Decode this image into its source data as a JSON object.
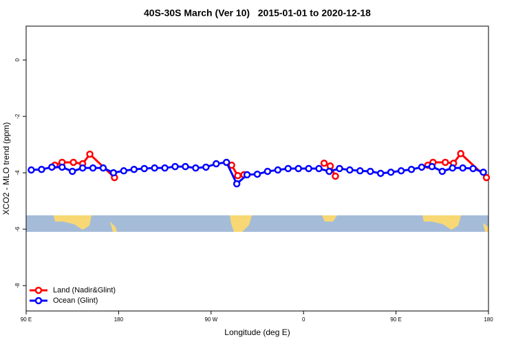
{
  "chart_data": {
    "type": "line",
    "title": "40S-30S March (Ver 10)   2015-01-01 to 2020-12-18",
    "x_label": "Longitude (deg E)",
    "y_label": "XCO2 - MLO trend (ppm)",
    "xlim": [
      90,
      540
    ],
    "xticks": [
      {
        "value": 90,
        "label": "90 E"
      },
      180,
      {
        "value": 270,
        "label": "90 W"
      },
      {
        "value": 360,
        "label": "0"
      },
      {
        "value": 450,
        "label": "90 E"
      },
      {
        "value": 540,
        "label": "180"
      }
    ],
    "ylim": [
      -8.9,
      1.2
    ],
    "yticks": [
      0,
      -2,
      -4,
      -6,
      -8
    ],
    "legend": "bottom-left",
    "series": [
      {
        "name": "Land (Nadir&Glint)",
        "color": "#ff0000",
        "x": [
          118,
          125,
          136,
          145,
          152,
          176,
          null,
          290,
          296,
          302,
          null,
          380,
          386,
          391,
          null,
          481,
          486,
          498,
          506,
          513,
          538
        ],
        "values": [
          -3.73,
          -3.63,
          -3.63,
          -3.68,
          -3.34,
          -4.17,
          null,
          -3.73,
          -4.1,
          -4.07,
          null,
          -3.66,
          -3.76,
          -4.12,
          null,
          -3.73,
          -3.63,
          -3.63,
          -3.66,
          -3.32,
          -4.17
        ]
      },
      {
        "name": "Ocean (Glint)",
        "color": "#0000ff",
        "x": [
          95,
          105,
          115,
          125,
          135,
          145,
          155,
          165,
          175,
          185,
          195,
          205,
          215,
          225,
          235,
          245,
          255,
          265,
          275,
          285,
          295,
          305,
          315,
          325,
          335,
          345,
          355,
          365,
          375,
          385,
          395,
          405,
          415,
          425,
          435,
          445,
          455,
          465,
          475,
          485,
          495,
          505,
          515,
          525,
          535
        ],
        "values": [
          -3.9,
          -3.88,
          -3.8,
          -3.8,
          -3.95,
          -3.83,
          -3.83,
          -3.83,
          -4.0,
          -3.93,
          -3.88,
          -3.85,
          -3.83,
          -3.83,
          -3.78,
          -3.78,
          -3.83,
          -3.8,
          -3.68,
          -3.63,
          -4.39,
          -4.07,
          -4.05,
          -3.95,
          -3.9,
          -3.85,
          -3.85,
          -3.85,
          -3.85,
          -3.95,
          -3.85,
          -3.9,
          -3.93,
          -3.95,
          -4.02,
          -3.98,
          -3.93,
          -3.88,
          -3.8,
          -3.78,
          -3.95,
          -3.83,
          -3.83,
          -3.85,
          -3.98
        ]
      }
    ]
  }
}
